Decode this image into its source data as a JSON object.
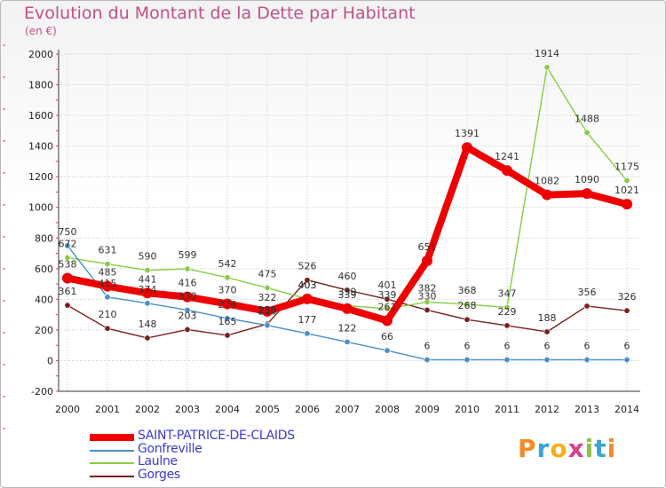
{
  "title": "Evolution du Montant de la Dette par Habitant",
  "unit_label": "(en €)",
  "logo_text": "Proxiti",
  "colors": {
    "title": "#c0508a",
    "grid": "#c8c8c8",
    "tick_marks": "#e04070",
    "legend_text": "#3a3ad0"
  },
  "chart_data": {
    "type": "line",
    "x": [
      "2000",
      "2001",
      "2002",
      "2003",
      "2004",
      "2005",
      "2006",
      "2007",
      "2008",
      "2009",
      "2010",
      "2011",
      "2012",
      "2013",
      "2014"
    ],
    "ylim": [
      -200,
      2000
    ],
    "yticks": [
      -200,
      0,
      200,
      400,
      600,
      800,
      1000,
      1200,
      1400,
      1600,
      1800,
      2000
    ],
    "grid": true,
    "legend_position": "bottom-left",
    "series": [
      {
        "name": "SAINT-PATRICE-DE-CLAIDS",
        "color": "#ee0000",
        "values": [
          538,
          485,
          441,
          416,
          370,
          322,
          403,
          339,
          261,
          651,
          1391,
          1241,
          1082,
          1090,
          1021
        ],
        "labels": [
          "538",
          "485",
          "441",
          "416",
          "370",
          "322",
          "403",
          "339",
          "261",
          "651",
          "1391",
          "1241",
          "1082",
          "1090",
          "1021"
        ]
      },
      {
        "name": "Gonfreville",
        "color": "#4a90c9",
        "values": [
          750,
          415,
          374,
          330,
          276,
          230,
          177,
          122,
          66,
          6,
          6,
          6,
          6,
          6,
          6
        ],
        "labels": [
          "750",
          "415",
          "374",
          "330",
          "276",
          "230",
          "177",
          "122",
          "66",
          "6",
          "6",
          "6",
          "6",
          "6",
          "6"
        ]
      },
      {
        "name": "Laulne",
        "color": "#88cc44",
        "values": [
          672,
          631,
          590,
          599,
          542,
          475,
          403,
          359,
          339,
          382,
          368,
          347,
          1914,
          1488,
          1175
        ],
        "labels": [
          "672",
          "631",
          "590",
          "599",
          "542",
          "475",
          "403",
          "359",
          "339",
          "382",
          "368",
          "347",
          "1914",
          "1488",
          "1175"
        ]
      },
      {
        "name": "Gorges",
        "color": "#7a1f1f",
        "values": [
          361,
          210,
          148,
          203,
          165,
          239,
          526,
          460,
          401,
          330,
          268,
          229,
          188,
          356,
          326
        ],
        "labels": [
          "361",
          "210",
          "148",
          "203",
          "165",
          "239",
          "526",
          "460",
          "401",
          "330",
          "268",
          "229",
          "188",
          "356",
          "326"
        ]
      }
    ]
  }
}
